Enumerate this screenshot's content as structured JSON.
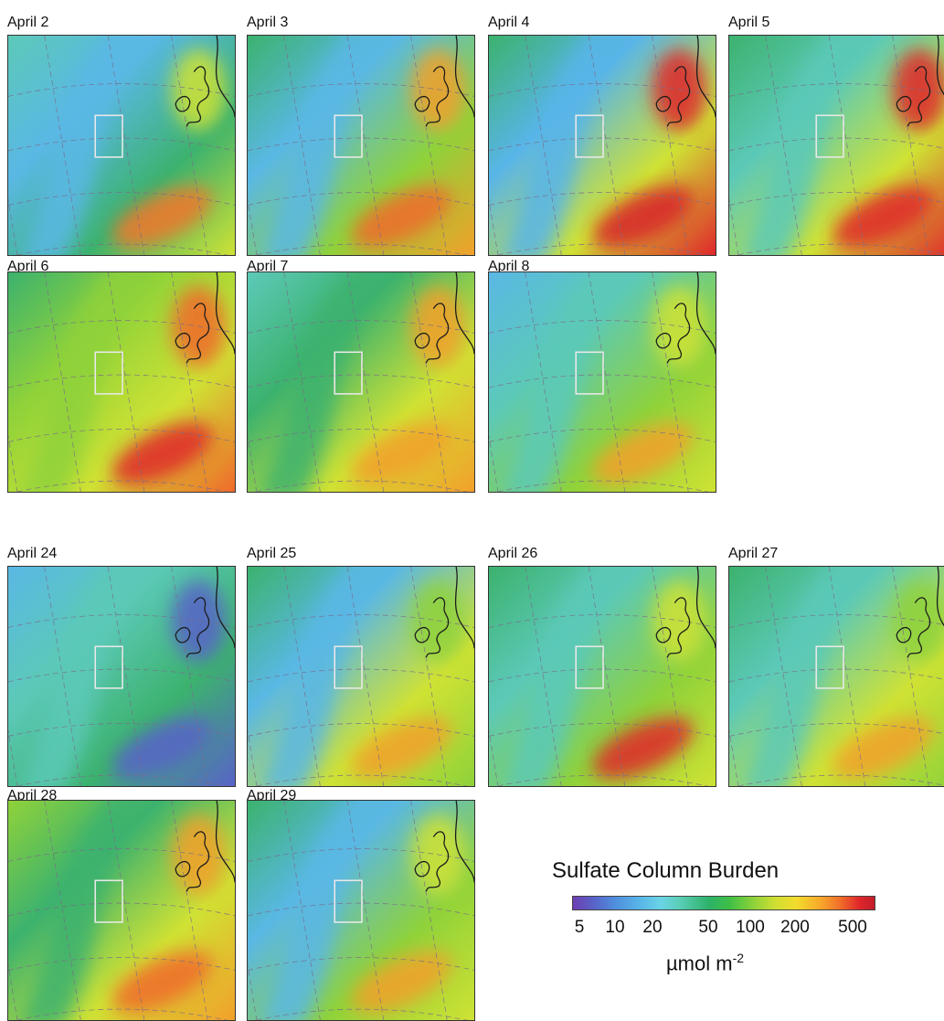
{
  "panels": [
    {
      "id": "apr2",
      "title": "April 2",
      "field": [
        "#5cc9b8",
        "#5ab8e4",
        "#3cb26e",
        "#cfe234"
      ],
      "hot": "#f2762a"
    },
    {
      "id": "apr3",
      "title": "April 3",
      "field": [
        "#3cb26e",
        "#5ab8e4",
        "#8fd23a",
        "#f2a02a"
      ],
      "hot": "#f06a2a"
    },
    {
      "id": "apr4",
      "title": "April 4",
      "field": [
        "#3cb26e",
        "#59b5e8",
        "#cfe234",
        "#e0262b"
      ],
      "hot": "#d8222b"
    },
    {
      "id": "apr5",
      "title": "April 5",
      "field": [
        "#3cb26e",
        "#5cc9b8",
        "#cfe234",
        "#e0262b"
      ],
      "hot": "#e0262b"
    },
    {
      "id": "apr6",
      "title": "April 6",
      "field": [
        "#3cb26e",
        "#8fd23a",
        "#cfe234",
        "#f06a2a"
      ],
      "hot": "#e0262b"
    },
    {
      "id": "apr7",
      "title": "April 7",
      "field": [
        "#5cc9b8",
        "#3cb26e",
        "#cfe234",
        "#f2a02a"
      ],
      "hot": "#f2a02a"
    },
    {
      "id": "apr8",
      "title": "April 8",
      "field": [
        "#5ab8e4",
        "#5cc9b8",
        "#8fd23a",
        "#cfe234"
      ],
      "hot": "#f2a02a"
    },
    {
      "id": "apr24",
      "title": "April 24",
      "field": [
        "#5ab8e4",
        "#5cc9b8",
        "#3cb26e",
        "#5863c8"
      ],
      "hot": "#5863c8"
    },
    {
      "id": "apr25",
      "title": "April 25",
      "field": [
        "#3cb26e",
        "#5ab8e4",
        "#cfe234",
        "#8fd23a"
      ],
      "hot": "#f2a02a"
    },
    {
      "id": "apr26",
      "title": "April 26",
      "field": [
        "#3cb26e",
        "#5cc9b8",
        "#8fd23a",
        "#cfe234"
      ],
      "hot": "#e0262b"
    },
    {
      "id": "apr27",
      "title": "April 27",
      "field": [
        "#3cb26e",
        "#5cc9b8",
        "#cfe234",
        "#8fd23a"
      ],
      "hot": "#f2a02a"
    },
    {
      "id": "apr28",
      "title": "April 28",
      "field": [
        "#8fd23a",
        "#3cb26e",
        "#cfe234",
        "#f2a02a"
      ],
      "hot": "#f06a2a"
    },
    {
      "id": "apr29",
      "title": "April 29",
      "field": [
        "#3cb26e",
        "#5ab8e4",
        "#8fd23a",
        "#cfe234"
      ],
      "hot": "#f2a02a"
    }
  ],
  "legend": {
    "title": "Sulfate Column Burden",
    "ticks": [
      "5",
      "10",
      "20",
      "50",
      "100",
      "200",
      "500"
    ],
    "unit_prefix": "µmol m",
    "unit_exponent": "-2",
    "colors": [
      "#6e3fb2",
      "#4f8fdc",
      "#6ad3e6",
      "#2db26a",
      "#8fd23a",
      "#f2dc2c",
      "#f06a2a",
      "#c11d2a"
    ]
  }
}
